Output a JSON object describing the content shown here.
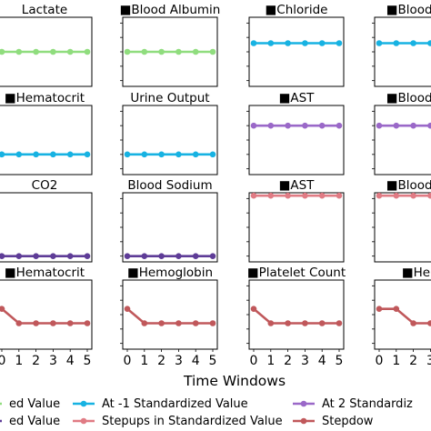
{
  "chart_data": {
    "type": "line",
    "x": [
      0,
      1,
      2,
      3,
      4,
      5
    ],
    "xlabel": "Time Windows",
    "ylim": [
      -2.4,
      2.4
    ],
    "panels": [
      {
        "title": "Lactate",
        "series": "at0",
        "values": [
          0,
          0,
          0,
          0,
          0,
          0
        ]
      },
      {
        "title": "■Blood Albumin",
        "series": "at0",
        "values": [
          0,
          0,
          0,
          0,
          0,
          0
        ]
      },
      {
        "title": "■Chloride",
        "series": "atm1",
        "values": [
          0.6,
          0.6,
          0.6,
          0.6,
          0.6,
          0.6
        ]
      },
      {
        "title": "■Blood Ure",
        "series": "atm1",
        "values": [
          0.6,
          0.6,
          0.6,
          0.6,
          0.6,
          0.6
        ]
      },
      {
        "title": "■Hematocrit",
        "series": "atm1",
        "values": [
          -1,
          -1,
          -1,
          -1,
          -1,
          -1
        ]
      },
      {
        "title": "Urine Output",
        "series": "atm1",
        "values": [
          -1,
          -1,
          -1,
          -1,
          -1,
          -1
        ]
      },
      {
        "title": "■AST",
        "series": "at2",
        "values": [
          1,
          1,
          1,
          1,
          1,
          1
        ]
      },
      {
        "title": "■Blood Ure",
        "series": "at2",
        "values": [
          1,
          1,
          1,
          1,
          1,
          1
        ]
      },
      {
        "title": "CO2",
        "series": "atm2",
        "values": [
          -2,
          -2,
          -2,
          -2,
          -2,
          -2
        ]
      },
      {
        "title": "Blood Sodium",
        "series": "atm2",
        "values": [
          -2,
          -2,
          -2,
          -2,
          -2,
          -2
        ]
      },
      {
        "title": "■AST",
        "series": "stepups",
        "values": [
          2.2,
          2.2,
          2.2,
          2.2,
          2.2,
          2.2
        ]
      },
      {
        "title": "■Blood Ure",
        "series": "stepups",
        "values": [
          2.2,
          2.2,
          2.2,
          2.2,
          2.2,
          2.2
        ]
      },
      {
        "title": "■Hematocrit",
        "series": "stepdowns",
        "values": [
          0.4,
          -0.6,
          -0.6,
          -0.6,
          -0.6,
          -0.6
        ]
      },
      {
        "title": "■Hemoglobin",
        "series": "stepdowns",
        "values": [
          0.4,
          -0.6,
          -0.6,
          -0.6,
          -0.6,
          -0.6
        ]
      },
      {
        "title": "■Platelet Count",
        "series": "stepdowns",
        "values": [
          0.4,
          -0.6,
          -0.6,
          -0.6,
          -0.6,
          -0.6
        ]
      },
      {
        "title": "■Hem",
        "series": "stepdowns",
        "values": [
          0.4,
          0.4,
          -0.6,
          -0.6,
          -0.6,
          -0.6
        ]
      }
    ],
    "series_styles": {
      "at0": {
        "color": "#90dd7e"
      },
      "atm1": {
        "color": "#17b2e2"
      },
      "at2": {
        "color": "#9a68c8"
      },
      "atm2": {
        "color": "#5e3c97"
      },
      "stepups": {
        "color": "#e07b84"
      },
      "stepdowns": {
        "color": "#c0585b"
      }
    },
    "legend": {
      "placement": "bottom",
      "entries": [
        {
          "label": "ed  Value",
          "color": "#90dd7e",
          "marker": false
        },
        {
          "label": "At -1 Standardized  Value",
          "color": "#17b2e2",
          "marker": true
        },
        {
          "label": "At 2 Standardiz",
          "color": "#9a68c8",
          "marker": true
        },
        {
          "label": "ed  Value",
          "color": "#5e3c97",
          "marker": false
        },
        {
          "label": "Stepups in Standardized  Value",
          "color": "#e07b84",
          "marker": true
        },
        {
          "label": "Stepdow",
          "color": "#c0585b",
          "marker": true
        }
      ]
    }
  }
}
